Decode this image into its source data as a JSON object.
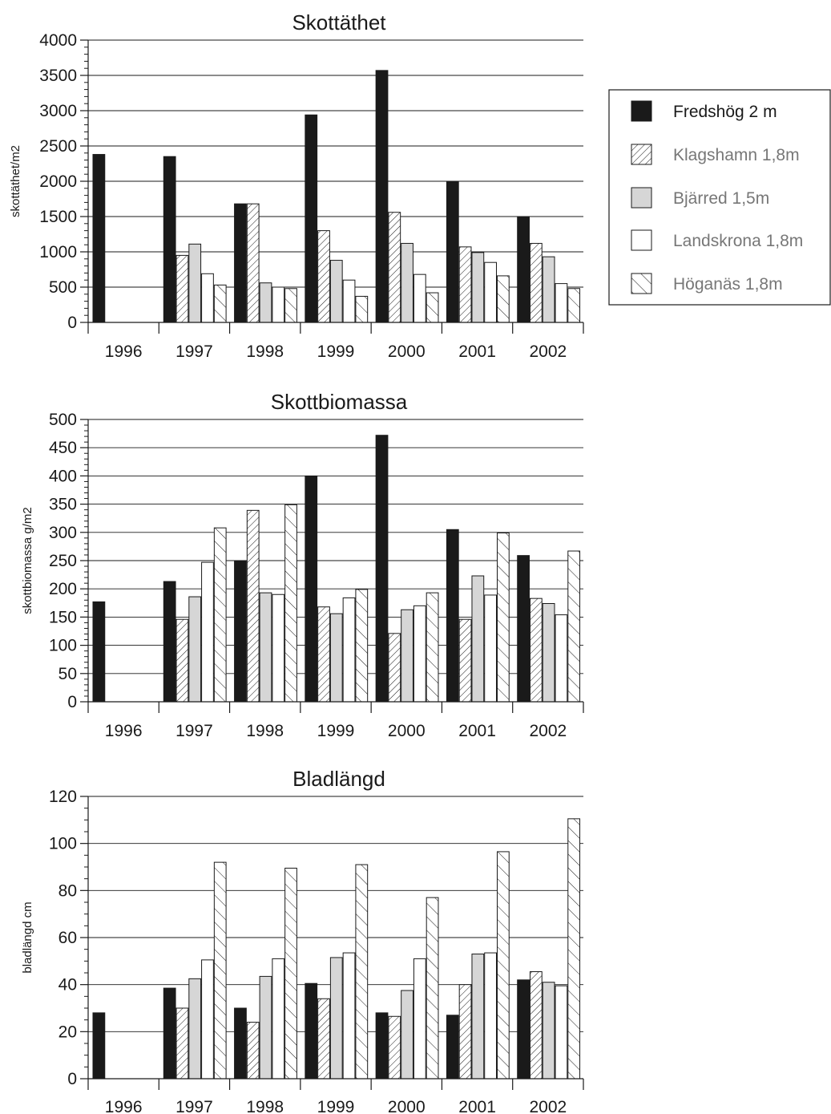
{
  "chart_data": [
    {
      "type": "bar",
      "title": "Skottäthet",
      "ylabel": "skottäthet/m2",
      "xlabel": "",
      "categories": [
        "1996",
        "1997",
        "1998",
        "1999",
        "2000",
        "2001",
        "2002"
      ],
      "ylim": [
        0,
        4000
      ],
      "yticks": [
        0,
        500,
        1000,
        1500,
        2000,
        2500,
        3000,
        3500,
        4000
      ],
      "grid": true,
      "series": [
        {
          "name": "Fredshög 2 m",
          "values": [
            2380,
            2350,
            1680,
            2940,
            3570,
            2000,
            1500
          ]
        },
        {
          "name": "Klagshamn 1,8m",
          "values": [
            null,
            950,
            1680,
            1300,
            1560,
            1070,
            1120
          ]
        },
        {
          "name": "Bjärred 1,5m",
          "values": [
            null,
            1110,
            560,
            880,
            1120,
            990,
            930
          ]
        },
        {
          "name": "Landskrona 1,8m",
          "values": [
            null,
            690,
            500,
            600,
            680,
            850,
            550
          ]
        },
        {
          "name": "Höganäs 1,8m",
          "values": [
            null,
            530,
            480,
            370,
            420,
            660,
            480
          ]
        }
      ]
    },
    {
      "type": "bar",
      "title": "Skottbiomassa",
      "ylabel": "skottbiomassa g/m2",
      "xlabel": "",
      "categories": [
        "1996",
        "1997",
        "1998",
        "1999",
        "2000",
        "2001",
        "2002"
      ],
      "ylim": [
        0,
        500
      ],
      "yticks": [
        0,
        50,
        100,
        150,
        200,
        250,
        300,
        350,
        400,
        450,
        500
      ],
      "grid": true,
      "series": [
        {
          "name": "Fredshög 2 m",
          "values": [
            177,
            213,
            250,
            400,
            472,
            305,
            259
          ]
        },
        {
          "name": "Klagshamn 1,8m",
          "values": [
            null,
            146,
            339,
            168,
            121,
            146,
            183
          ]
        },
        {
          "name": "Bjärred 1,5m",
          "values": [
            null,
            186,
            193,
            156,
            163,
            223,
            174
          ]
        },
        {
          "name": "Landskrona 1,8m",
          "values": [
            null,
            247,
            190,
            184,
            170,
            189,
            154
          ]
        },
        {
          "name": "Höganäs 1,8m",
          "values": [
            null,
            308,
            349,
            199,
            193,
            299,
            267
          ]
        }
      ]
    },
    {
      "type": "bar",
      "title": "Bladlängd",
      "ylabel": "bladlängd cm",
      "xlabel": "",
      "categories": [
        "1996",
        "1997",
        "1998",
        "1999",
        "2000",
        "2001",
        "2002"
      ],
      "ylim": [
        0,
        120
      ],
      "yticks": [
        0,
        20,
        40,
        60,
        80,
        100,
        120
      ],
      "grid": true,
      "series": [
        {
          "name": "Fredshög 2 m",
          "values": [
            28,
            38.5,
            30,
            40.5,
            28,
            27,
            42
          ]
        },
        {
          "name": "Klagshamn 1,8m",
          "values": [
            null,
            30,
            24,
            34,
            26.5,
            40,
            45.5
          ]
        },
        {
          "name": "Bjärred 1,5m",
          "values": [
            null,
            42.5,
            43.5,
            51.5,
            37.5,
            53,
            41
          ]
        },
        {
          "name": "Landskrona 1,8m",
          "values": [
            null,
            50.5,
            51,
            53.5,
            51,
            53.5,
            39.5
          ]
        },
        {
          "name": "Höganäs 1,8m",
          "values": [
            null,
            92,
            89.5,
            91,
            77,
            96.5,
            110.5
          ]
        }
      ]
    }
  ],
  "legend": {
    "placement": "right",
    "items": [
      {
        "label": "Fredshög 2 m",
        "style": "solid-dark",
        "color": "#1a1a1a"
      },
      {
        "label": "Klagshamn 1,8m",
        "style": "diagonal-hatch-dense",
        "color": "#ffffff"
      },
      {
        "label": "Bjärred 1,5m",
        "style": "light-gray",
        "color": "#d6d6d6"
      },
      {
        "label": "Landskrona 1,8m",
        "style": "white",
        "color": "#ffffff"
      },
      {
        "label": "Höganäs 1,8m",
        "style": "diagonal-hatch-sparse",
        "color": "#ffffff"
      }
    ],
    "label_color": "#777777",
    "first_label_color": "#1a1a1a"
  }
}
